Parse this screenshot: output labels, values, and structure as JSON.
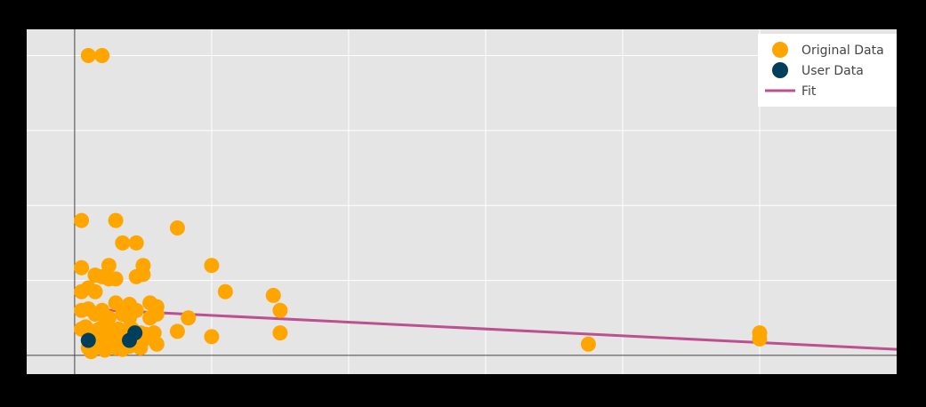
{
  "chart_data": {
    "type": "scatter",
    "title": "",
    "xlabel": "",
    "ylabel": "",
    "xlim": [
      -0.35,
      6.0
    ],
    "ylim": [
      -0.25,
      4.35
    ],
    "grid": true,
    "legend_placement": "top-right",
    "colors": {
      "background": "#000000",
      "plot_area": "#e5e5e5",
      "grid": "#ffffff",
      "zero_line": "#444444",
      "original": "#ffa500",
      "user": "#003f5c",
      "fit": "#bc5090",
      "legend_bg": "#ffffff"
    },
    "series": [
      {
        "name": "Original Data",
        "mode": "markers",
        "x": [
          0.1,
          0.2,
          0.05,
          0.3,
          0.35,
          0.45,
          0.25,
          0.5,
          0.05,
          0.15,
          0.2,
          0.25,
          0.3,
          0.45,
          0.5,
          0.05,
          0.1,
          0.15,
          0.3,
          0.4,
          0.55,
          0.6,
          0.05,
          0.1,
          0.15,
          0.2,
          0.25,
          0.35,
          0.4,
          0.45,
          0.55,
          0.6,
          0.05,
          0.08,
          0.12,
          0.18,
          0.22,
          0.28,
          0.32,
          0.38,
          0.42,
          0.48,
          0.52,
          0.58,
          0.1,
          0.15,
          0.2,
          0.25,
          0.3,
          0.35,
          0.4,
          0.45,
          0.5,
          0.6,
          0.1,
          0.2,
          0.3,
          0.4,
          0.12,
          0.22,
          0.35,
          0.48,
          0.75,
          0.75,
          0.83,
          1.0,
          1.0,
          1.1,
          1.45,
          1.5,
          1.5,
          3.75,
          5.0,
          5.0
        ],
        "y": [
          4.0,
          4.0,
          1.8,
          1.8,
          1.5,
          1.5,
          1.2,
          1.2,
          1.17,
          1.07,
          1.05,
          1.02,
          1.02,
          1.05,
          1.08,
          0.85,
          0.9,
          0.85,
          0.7,
          0.68,
          0.7,
          0.65,
          0.6,
          0.62,
          0.55,
          0.6,
          0.5,
          0.55,
          0.5,
          0.6,
          0.5,
          0.55,
          0.35,
          0.38,
          0.32,
          0.35,
          0.4,
          0.3,
          0.35,
          0.33,
          0.35,
          0.3,
          0.28,
          0.3,
          0.2,
          0.22,
          0.25,
          0.18,
          0.2,
          0.15,
          0.2,
          0.18,
          0.2,
          0.15,
          0.1,
          0.12,
          0.1,
          0.12,
          0.05,
          0.07,
          0.08,
          0.1,
          1.7,
          0.32,
          0.5,
          1.2,
          0.25,
          0.85,
          0.8,
          0.3,
          0.6,
          0.15,
          0.3,
          0.22
        ]
      },
      {
        "name": "User Data",
        "mode": "markers",
        "x": [
          0.1,
          0.4,
          0.44
        ],
        "y": [
          0.2,
          0.2,
          0.3
        ]
      },
      {
        "name": "Fit",
        "mode": "lines",
        "x": [
          0.05,
          6.0
        ],
        "y": [
          0.62,
          0.08
        ]
      }
    ]
  }
}
